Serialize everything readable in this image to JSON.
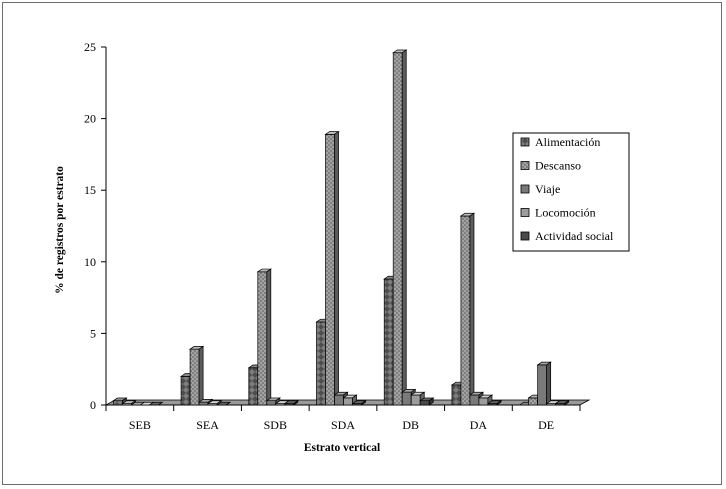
{
  "chart_data": {
    "type": "bar",
    "categories": [
      "SEB",
      "SEA",
      "SDB",
      "SDA",
      "DB",
      "DA",
      "DE"
    ],
    "series": [
      {
        "name": "Alimentación",
        "values": [
          0.3,
          2.0,
          2.6,
          5.8,
          8.8,
          1.4,
          0.0
        ],
        "color": "#666666",
        "pattern": "diamond"
      },
      {
        "name": "Descanso",
        "values": [
          0.1,
          3.9,
          9.3,
          18.9,
          24.6,
          13.2,
          0.5
        ],
        "color": "#8c8c8c",
        "pattern": "dots"
      },
      {
        "name": "Viaje",
        "values": [
          0.0,
          0.2,
          0.3,
          0.7,
          0.9,
          0.7,
          2.8
        ],
        "color": "#7a7a7a",
        "pattern": "solid"
      },
      {
        "name": "Locomoción",
        "values": [
          0.0,
          0.1,
          0.1,
          0.5,
          0.7,
          0.5,
          0.1
        ],
        "color": "#9c9c9c",
        "pattern": "solid"
      },
      {
        "name": "Actividad social",
        "values": [
          0.0,
          0.0,
          0.1,
          0.1,
          0.3,
          0.1,
          0.1
        ],
        "color": "#4a4a4a",
        "pattern": "solid"
      }
    ],
    "yticks": [
      "0",
      "5",
      "10",
      "15",
      "20",
      "25"
    ],
    "ylim": [
      0,
      25
    ],
    "xlabel": "Estrato vertical",
    "ylabel": "% de registros por estrato",
    "legend_position": "right",
    "grid": false
  }
}
